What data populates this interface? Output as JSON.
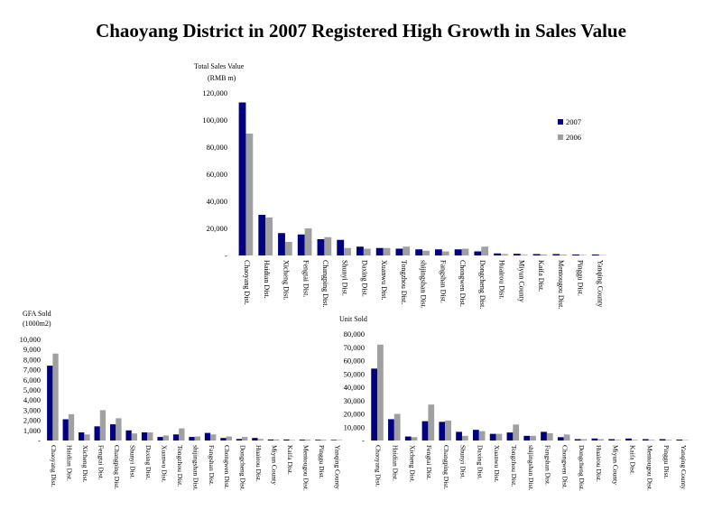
{
  "title": "Chaoyang District in 2007 Registered High Growth in Sales Value",
  "colors": {
    "s2007": "#000080",
    "s2006": "#a0a0a0"
  },
  "chart_data": [
    {
      "type": "bar",
      "id": "sales",
      "ylabel_line1": "Total Sales Value",
      "ylabel_line2": "(RMB m)",
      "ylim": [
        0,
        120000
      ],
      "ticks": [
        "120,000",
        "100,000",
        "80,000",
        "60,000",
        "40,000",
        "20,000",
        "-"
      ],
      "tick_values": [
        120000,
        100000,
        80000,
        60000,
        40000,
        20000,
        0
      ],
      "categories": [
        "Chaoyang Dist.",
        "Haidian Dist.",
        "Xicheng Dist.",
        "Fengtai Dist.",
        "Changping Dist.",
        "Shunyi Dist.",
        "Daxing Dist.",
        "Xuanwu Dist.",
        "Tongzhou Dist.",
        "shijingshan Dist.",
        "Fangshan Dist.",
        "Chongwen Dist.",
        "Dongcheng Dist.",
        "Huairou Dist.",
        "Miyun County",
        "Kaifa Dist.",
        "Mentougou Dist.",
        "Pinggu Dist.",
        "Yanqing County"
      ],
      "series": [
        {
          "name": "2007",
          "values": [
            113000,
            30000,
            16500,
            15500,
            12000,
            11500,
            6500,
            5500,
            5000,
            4500,
            4500,
            4500,
            3000,
            1500,
            1200,
            1000,
            1000,
            700,
            700
          ]
        },
        {
          "name": "2006",
          "values": [
            90000,
            28000,
            10000,
            20000,
            13500,
            5500,
            5000,
            5500,
            6500,
            3500,
            3000,
            5000,
            6500,
            1000,
            500,
            700,
            600,
            400,
            300
          ]
        }
      ],
      "legend": "right"
    },
    {
      "type": "bar",
      "id": "gfa",
      "ylabel_line1": "GFA Sold",
      "ylabel_line2": "(1000m2)",
      "ylim": [
        0,
        10000
      ],
      "ticks": [
        "10,000",
        "9,000",
        "8,000",
        "7,000",
        "6,000",
        "5,000",
        "4,000",
        "3,000",
        "2,000",
        "1,000",
        "-"
      ],
      "tick_values": [
        10000,
        9000,
        8000,
        7000,
        6000,
        5000,
        4000,
        3000,
        2000,
        1000,
        0
      ],
      "categories": [
        "Chaoyang Dist.",
        "Haidian Dist.",
        "Xicheng Dist.",
        "Fengtai Dist.",
        "Changping Dist.",
        "Shunyi Dist.",
        "Daxing Dist.",
        "Xuanwu Dist.",
        "Tongzhou Dist.",
        "shijingshan Dist.",
        "Fangshan Dist.",
        "Chongwen Dist.",
        "Dongcheng Dist.",
        "Huairou Dist.",
        "Miyun County",
        "Kaifa Dist.",
        "Mentougou Dist.",
        "Pinggu Dist.",
        "Yanqing County"
      ],
      "series": [
        {
          "name": "2007",
          "values": [
            7400,
            2100,
            800,
            1400,
            1600,
            1000,
            800,
            350,
            600,
            350,
            750,
            250,
            150,
            250,
            100,
            100,
            80,
            70,
            60
          ]
        },
        {
          "name": "2006",
          "values": [
            8600,
            2600,
            600,
            3000,
            2200,
            700,
            800,
            500,
            1200,
            400,
            600,
            400,
            350,
            150,
            100,
            50,
            80,
            70,
            50
          ]
        }
      ]
    },
    {
      "type": "bar",
      "id": "units",
      "ylabel_line1": "Unit Sold",
      "ylim": [
        0,
        80000
      ],
      "ticks": [
        "80,000",
        "70,000",
        "60,000",
        "50,000",
        "40,000",
        "30,000",
        "20,000",
        "10,000",
        "-"
      ],
      "tick_values": [
        80000,
        70000,
        60000,
        50000,
        40000,
        30000,
        20000,
        10000,
        0
      ],
      "categories": [
        "Chaoyang Dist.",
        "Haidian Dist.",
        "Xicheng Dist.",
        "Fengtai Dist.",
        "Changping Dist.",
        "Shunyi Dist.",
        "Daxing Dist.",
        "Xuanwu Dist.",
        "Tongzhou Dist.",
        "shijingshan Dist.",
        "Fangshan Dist.",
        "Chongwen Dist.",
        "Dongcheng Dist.",
        "Huairou Dist.",
        "Miyun County",
        "Kaifa Dist.",
        "Mentougou Dist.",
        "Pinggu Dist.",
        "Yanqing County"
      ],
      "series": [
        {
          "name": "2007",
          "values": [
            54000,
            16000,
            3000,
            14500,
            14000,
            6500,
            8000,
            5000,
            6000,
            3500,
            6500,
            2500,
            1000,
            1500,
            1000,
            1500,
            1000,
            1000,
            700
          ]
        },
        {
          "name": "2006",
          "values": [
            72000,
            20000,
            2500,
            27000,
            15000,
            3500,
            7000,
            5000,
            12000,
            3500,
            5500,
            4500,
            1000,
            1000,
            500,
            500,
            500,
            500,
            300
          ]
        }
      ]
    }
  ]
}
